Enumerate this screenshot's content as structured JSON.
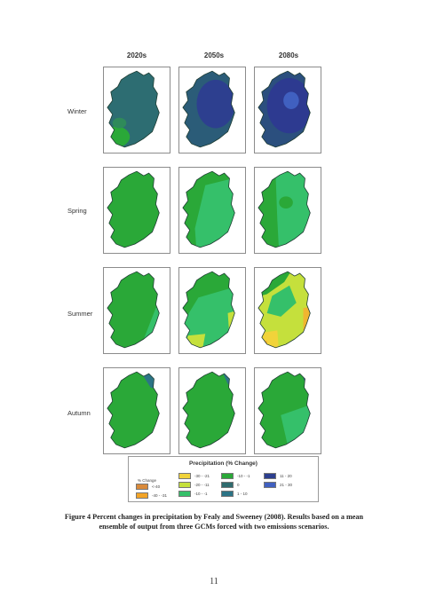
{
  "figure": {
    "columns": [
      "2020s",
      "2050s",
      "2080s"
    ],
    "rows": [
      "Winter",
      "Spring",
      "Summer",
      "Autumn"
    ],
    "panels": [
      [
        "w20",
        "w50",
        "w80"
      ],
      [
        "sp20",
        "sp50",
        "sp80"
      ],
      [
        "su20",
        "su50",
        "su80"
      ],
      [
        "au20",
        "au50",
        "au80"
      ]
    ]
  },
  "legend": {
    "title": "Precipitation (% Change)",
    "subtitle": "% Change",
    "items": [
      {
        "label": "<-40",
        "color": "#d98a3a"
      },
      {
        "label": "-40 - -31",
        "color": "#f3a427"
      },
      {
        "label": "-30 - -21",
        "color": "#f1d33a"
      },
      {
        "label": "-20 - -11",
        "color": "#c5e03c"
      },
      {
        "label": "-10 - -1",
        "color": "#35c06a"
      },
      {
        "label": "-10 - -1",
        "color": "#2aa838"
      },
      {
        "label": "0",
        "color": "#2f6b6e"
      },
      {
        "label": "1 - 10",
        "color": "#2c7486"
      },
      {
        "label": "11 - 20",
        "color": "#2d3f8f"
      },
      {
        "label": "21 - 30",
        "color": "#4060c0"
      }
    ]
  },
  "caption": {
    "line1": "Figure 4 Percent changes in precipitation by Fealy and Sweeney (2008). Results based on a mean",
    "line2": "ensemble of output from three GCMs forced with two emissions scenarios."
  },
  "page_number": "11"
}
